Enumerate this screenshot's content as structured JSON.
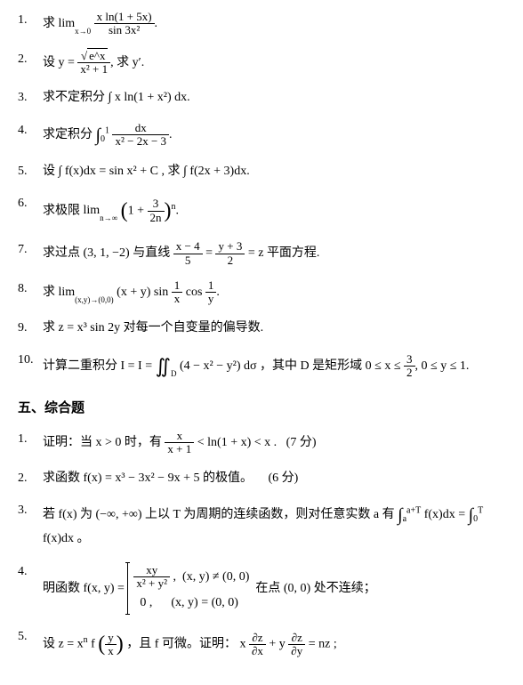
{
  "doc": {
    "type": "math-exam",
    "background_color": "#ffffff",
    "text_color": "#000000",
    "font_family": "SimSun",
    "base_fontsize": 14
  },
  "problems_part1": [
    {
      "num": "1.",
      "prefix": "求",
      "limit_op": "lim",
      "limit_sub": "x→0",
      "frac_num": "x ln(1 + 5x)",
      "frac_den": "sin 3x²",
      "suffix": "."
    },
    {
      "num": "2.",
      "prefix": "设 y =",
      "frac_num_sqrt": "e^x",
      "frac_den": "x² + 1",
      "suffix": ", 求 y′."
    },
    {
      "num": "3.",
      "text": "求不定积分 ∫ x ln(1 + x²) dx."
    },
    {
      "num": "4.",
      "prefix": "求定积分",
      "int_lo": "0",
      "int_hi": "1",
      "frac_num": "dx",
      "frac_den": "x² − 2x − 3",
      "suffix": "."
    },
    {
      "num": "5.",
      "text": "设 ∫ f(x)dx = sin x² + C , 求 ∫ f(2x + 3)dx."
    },
    {
      "num": "6.",
      "prefix": "求极限",
      "limit_op": "lim",
      "limit_sub": "n→∞",
      "inner_prefix": "1 +",
      "frac_num": "3",
      "frac_den": "2n",
      "exponent": "n",
      "suffix": "."
    },
    {
      "num": "7.",
      "prefix": "求过点 (3, 1, −2) 与直线",
      "frac1_num": "x − 4",
      "frac1_den": "5",
      "eq": "=",
      "frac2_num": "y + 3",
      "frac2_den": "2",
      "suffix": "= z 平面方程."
    },
    {
      "num": "8.",
      "prefix": "求",
      "limit_op": "lim",
      "limit_sub": "(x,y)→(0,0)",
      "body_1": "(x + y) sin",
      "frac1_num": "1",
      "frac1_den": "x",
      "body_2": "cos",
      "frac2_num": "1",
      "frac2_den": "y",
      "suffix": "."
    },
    {
      "num": "9.",
      "text": "求 z = x³ sin 2y 对每一个自变量的偏导数."
    },
    {
      "num": "10.",
      "prefix": "计算二重积分 I = I =",
      "dint_region": "D",
      "integrand": "(4 − x² − y²) dσ",
      "mid": "，其中 D 是矩形域 0 ≤ x ≤",
      "frac_num": "3",
      "frac_den": "2",
      "suffix": ", 0 ≤ y ≤ 1."
    }
  ],
  "section5_title": "五、综合题",
  "problems_part5": [
    {
      "num": "1.",
      "prefix": "证明：当 x > 0 时，有",
      "frac_num": "x",
      "frac_den": "x + 1",
      "suffix": "< ln(1 + x) < x .",
      "score": "(7 分)"
    },
    {
      "num": "2.",
      "text": "求函数 f(x) = x³ − 3x² − 9x + 5 的极值。",
      "score": "(6 分)"
    },
    {
      "num": "3.",
      "prefix": "若 f(x) 为 (−∞, +∞) 上以 T 为周期的连续函数，则对任意实数 a 有",
      "int1_lo": "a",
      "int1_hi": "a+T",
      "int1_body": "f(x)dx",
      "eq": "=",
      "int2_lo": "0",
      "int2_hi": "T",
      "int2_body": "f(x)dx",
      "suffix": "。"
    },
    {
      "num": "4.",
      "prefix": "明函数 f(x, y) =",
      "case1_frac_num": "xy",
      "case1_frac_den": "x² + y²",
      "case1_cond": "(x, y) ≠ (0, 0)",
      "case2_val": "0",
      "case2_cond": "(x, y) = (0, 0)",
      "suffix": "在点 (0, 0) 处不连续；"
    },
    {
      "num": "5.",
      "prefix": "设 z = x",
      "exp": "n",
      "func": "f",
      "arg_frac_num": "y",
      "arg_frac_den": "x",
      "mid": "，且 f 可微。证明：",
      "term1_coef": "x",
      "term1_frac_num": "∂z",
      "term1_frac_den": "∂x",
      "plus": "+",
      "term2_coef": "y",
      "term2_frac_num": "∂z",
      "term2_frac_den": "∂y",
      "suffix": "= nz ;"
    }
  ]
}
